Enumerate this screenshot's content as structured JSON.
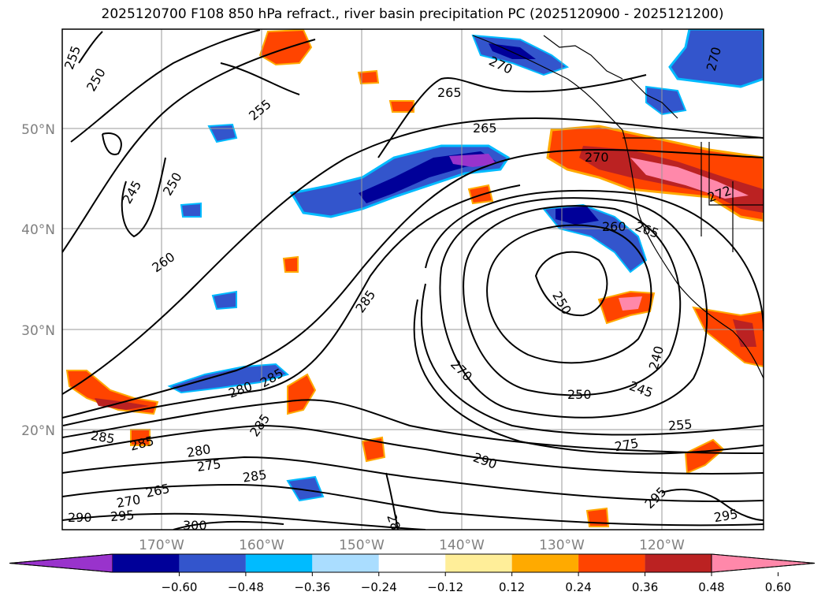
{
  "title": "2025120700 F108 850 hPa refract., river basin precipitation PC (2025120900 - 2025121200)",
  "colors": {
    "ocean_bg": "#ffffff",
    "contour": "#000000",
    "grid": "#999999",
    "coast": "#000000"
  },
  "axes": {
    "lat_labels": [
      "50°N",
      "40°N",
      "30°N",
      "20°N"
    ],
    "lon_labels": [
      "170°W",
      "160°W",
      "150°W",
      "140°W",
      "130°W",
      "120°W"
    ]
  },
  "colorbar": {
    "colors": [
      "#9933cc",
      "#000099",
      "#3355cc",
      "#00bbff",
      "#aaddff",
      "#ffffff",
      "#ffee99",
      "#ffaa00",
      "#ff4400",
      "#bb2222",
      "#ff88aa"
    ],
    "tick_labels": [
      "−0.60",
      "−0.48",
      "−0.36",
      "−0.24",
      "−0.12",
      "0.12",
      "0.24",
      "0.36",
      "0.48",
      "0.60"
    ]
  },
  "contour_labels": [
    {
      "text": "255"
    },
    {
      "text": "250"
    },
    {
      "text": "255"
    },
    {
      "text": "265"
    },
    {
      "text": "265"
    },
    {
      "text": "270"
    },
    {
      "text": "270"
    },
    {
      "text": "245"
    },
    {
      "text": "250"
    },
    {
      "text": "260"
    },
    {
      "text": "260"
    },
    {
      "text": "265"
    },
    {
      "text": "285"
    },
    {
      "text": "250"
    },
    {
      "text": "240"
    },
    {
      "text": "270"
    },
    {
      "text": "250"
    },
    {
      "text": "245"
    },
    {
      "text": "255"
    },
    {
      "text": "275"
    },
    {
      "text": "285"
    },
    {
      "text": "280"
    },
    {
      "text": "285"
    },
    {
      "text": "285"
    },
    {
      "text": "285"
    },
    {
      "text": "280"
    },
    {
      "text": "275"
    },
    {
      "text": "285"
    },
    {
      "text": "265"
    },
    {
      "text": "270"
    },
    {
      "text": "295"
    },
    {
      "text": "290"
    },
    {
      "text": "300"
    },
    {
      "text": "290"
    },
    {
      "text": "295"
    },
    {
      "text": "295"
    },
    {
      "text": "270"
    },
    {
      "text": "272"
    },
    {
      "text": "28"
    }
  ]
}
